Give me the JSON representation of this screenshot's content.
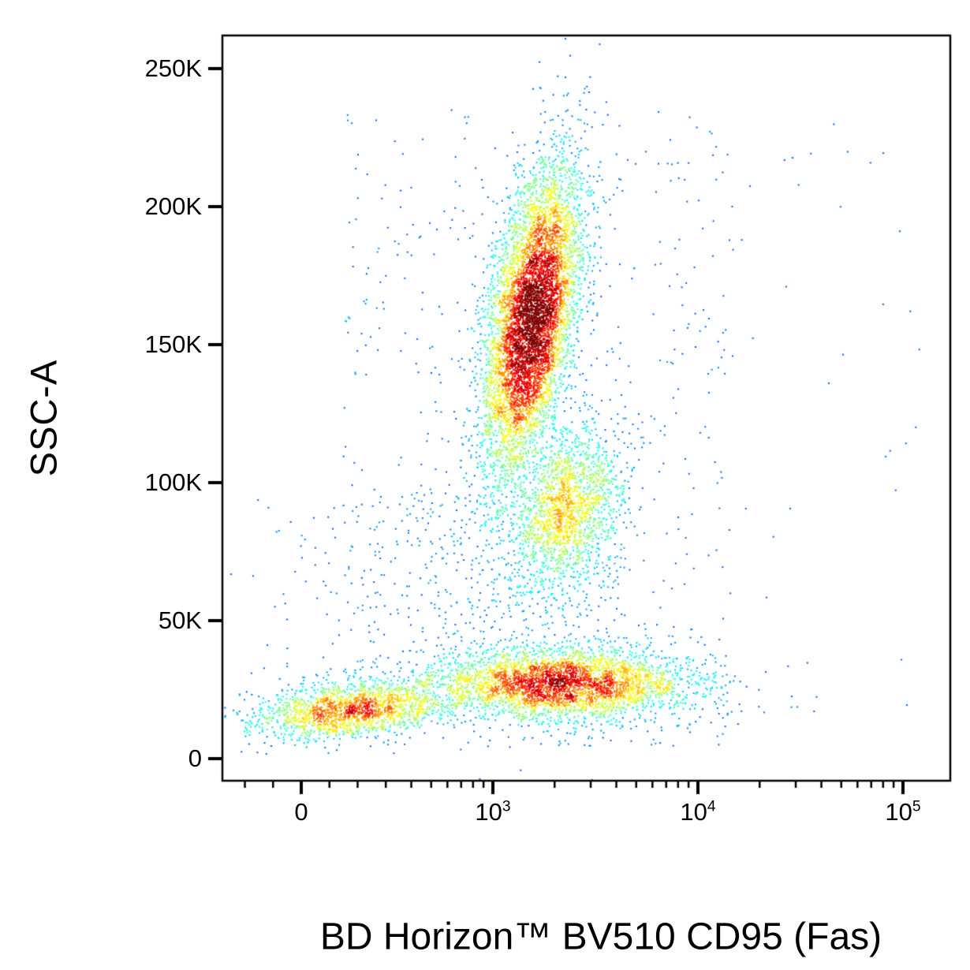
{
  "figure": {
    "background": "#ffffff",
    "frame_color": "#000000"
  },
  "chart_data": {
    "type": "scatter",
    "subtype": "flow-cytometry-pseudocolor-density-plot",
    "title": "",
    "xlabel": "BD Horizon™ BV510 CD95 (Fas)",
    "ylabel": "SSC-A",
    "colormap": "jet",
    "x_scale": {
      "type": "biexponential",
      "linear_below": 316,
      "shown_range": [
        -300,
        200000
      ]
    },
    "y_scale": {
      "type": "linear"
    },
    "ylim": [
      -8000,
      262000
    ],
    "x_ticks": [
      {
        "value": 0,
        "label": "0"
      },
      {
        "value": 1000,
        "base": "10",
        "exp": "3"
      },
      {
        "value": 10000,
        "base": "10",
        "exp": "4"
      },
      {
        "value": 100000,
        "base": "10",
        "exp": "5"
      }
    ],
    "x_minor_ticks": [
      -200,
      -100,
      100,
      200,
      300,
      400,
      500,
      600,
      700,
      800,
      900,
      2000,
      3000,
      4000,
      5000,
      6000,
      7000,
      8000,
      9000,
      20000,
      30000,
      40000,
      50000,
      60000,
      70000,
      80000,
      90000
    ],
    "y_ticks": [
      {
        "value": 0,
        "label": "0"
      },
      {
        "value": 50000,
        "label": "50K"
      },
      {
        "value": 100000,
        "label": "100K"
      },
      {
        "value": 150000,
        "label": "150K"
      },
      {
        "value": 200000,
        "label": "200K"
      },
      {
        "value": 250000,
        "label": "250K"
      }
    ],
    "clusters": [
      {
        "name": "high-ssc-main-population",
        "n": 7000,
        "rho": 0.5,
        "x": {
          "dist": "lognormal",
          "center": 1550,
          "sigma_dec": 0.115
        },
        "y": {
          "dist": "normal",
          "mean": 160000,
          "sd": 27000
        }
      },
      {
        "name": "mid-ssc-population",
        "n": 1500,
        "rho": 0.25,
        "x": {
          "dist": "lognormal",
          "center": 2400,
          "sigma_dec": 0.13
        },
        "y": {
          "dist": "normal",
          "mean": 91000,
          "sd": 13000
        }
      },
      {
        "name": "low-ssc-cd95-positive",
        "n": 3800,
        "rho": 0,
        "x": {
          "dist": "lognormal",
          "center": 2200,
          "sigma_dec": 0.32
        },
        "y": {
          "dist": "normal",
          "mean": 27000,
          "sd": 6500
        }
      },
      {
        "name": "low-ssc-cd95-negative",
        "n": 1700,
        "rho": 0.3,
        "x": {
          "dist": "normal",
          "center": 170,
          "sigma": 165
        },
        "y": {
          "dist": "normal",
          "mean": 17500,
          "sd": 5200
        }
      },
      {
        "name": "vertical-bridge-smear",
        "n": 650,
        "rho": 0,
        "x": {
          "dist": "lognormal",
          "center": 1800,
          "sigma_dec": 0.17
        },
        "y": {
          "dist": "normal",
          "mean": 80000,
          "sd": 30000
        }
      },
      {
        "name": "sparse-background",
        "n": 550,
        "rho": 0,
        "x": {
          "dist": "loguniform",
          "range": [
            150,
            15000
          ]
        },
        "y": {
          "dist": "uniform",
          "range": [
            4000,
            235000
          ]
        }
      },
      {
        "name": "left-debris",
        "n": 350,
        "rho": 0,
        "x": {
          "dist": "normal",
          "center": 420,
          "sigma": 320
        },
        "y": {
          "dist": "uniform",
          "range": [
            12000,
            95000
          ]
        }
      },
      {
        "name": "right-outliers",
        "n": 40,
        "rho": 0,
        "x": {
          "dist": "loguniform",
          "range": [
            12000,
            140000
          ]
        },
        "y": {
          "dist": "uniform",
          "range": [
            8000,
            230000
          ]
        }
      }
    ]
  }
}
